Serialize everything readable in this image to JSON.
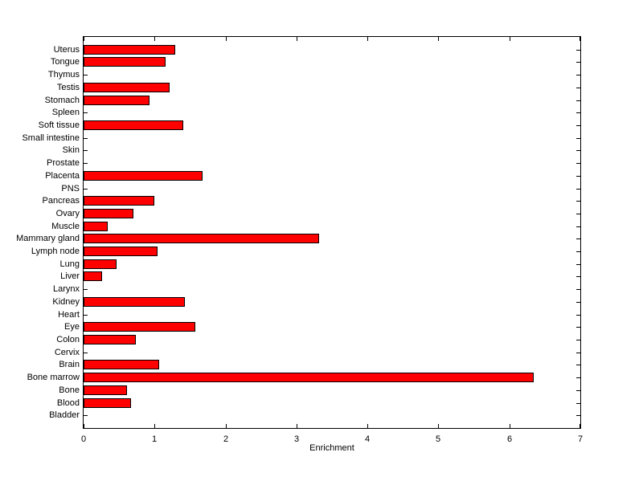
{
  "chart_data": {
    "type": "bar",
    "orientation": "horizontal",
    "title": "",
    "xlabel": "Enrichment",
    "ylabel": "",
    "xlim": [
      0,
      7
    ],
    "xticks": [
      0,
      1,
      2,
      3,
      4,
      5,
      6,
      7
    ],
    "grid": false,
    "legend": "none",
    "bar_color": "#ff0000",
    "bar_edge_color": "#000000",
    "axis_color": "#000000",
    "background_color": "#ffffff",
    "categories_top_to_bottom": [
      "Uterus",
      "Tongue",
      "Thymus",
      "Testis",
      "Stomach",
      "Spleen",
      "Soft tissue",
      "Small intestine",
      "Skin",
      "Prostate",
      "Placenta",
      "PNS",
      "Pancreas",
      "Ovary",
      "Muscle",
      "Mammary gland",
      "Lymph node",
      "Lung",
      "Liver",
      "Larynx",
      "Kidney",
      "Heart",
      "Eye",
      "Colon",
      "Cervix",
      "Brain",
      "Bone marrow",
      "Bone",
      "Blood",
      "Bladder"
    ],
    "values": [
      1.29,
      1.15,
      0,
      1.21,
      0.93,
      0,
      1.4,
      0,
      0,
      0,
      1.68,
      0,
      1.0,
      0.7,
      0.34,
      3.32,
      1.04,
      0.46,
      0.26,
      0,
      1.43,
      0,
      1.57,
      0.74,
      0,
      1.06,
      6.34,
      0.61,
      0.67,
      0
    ]
  }
}
